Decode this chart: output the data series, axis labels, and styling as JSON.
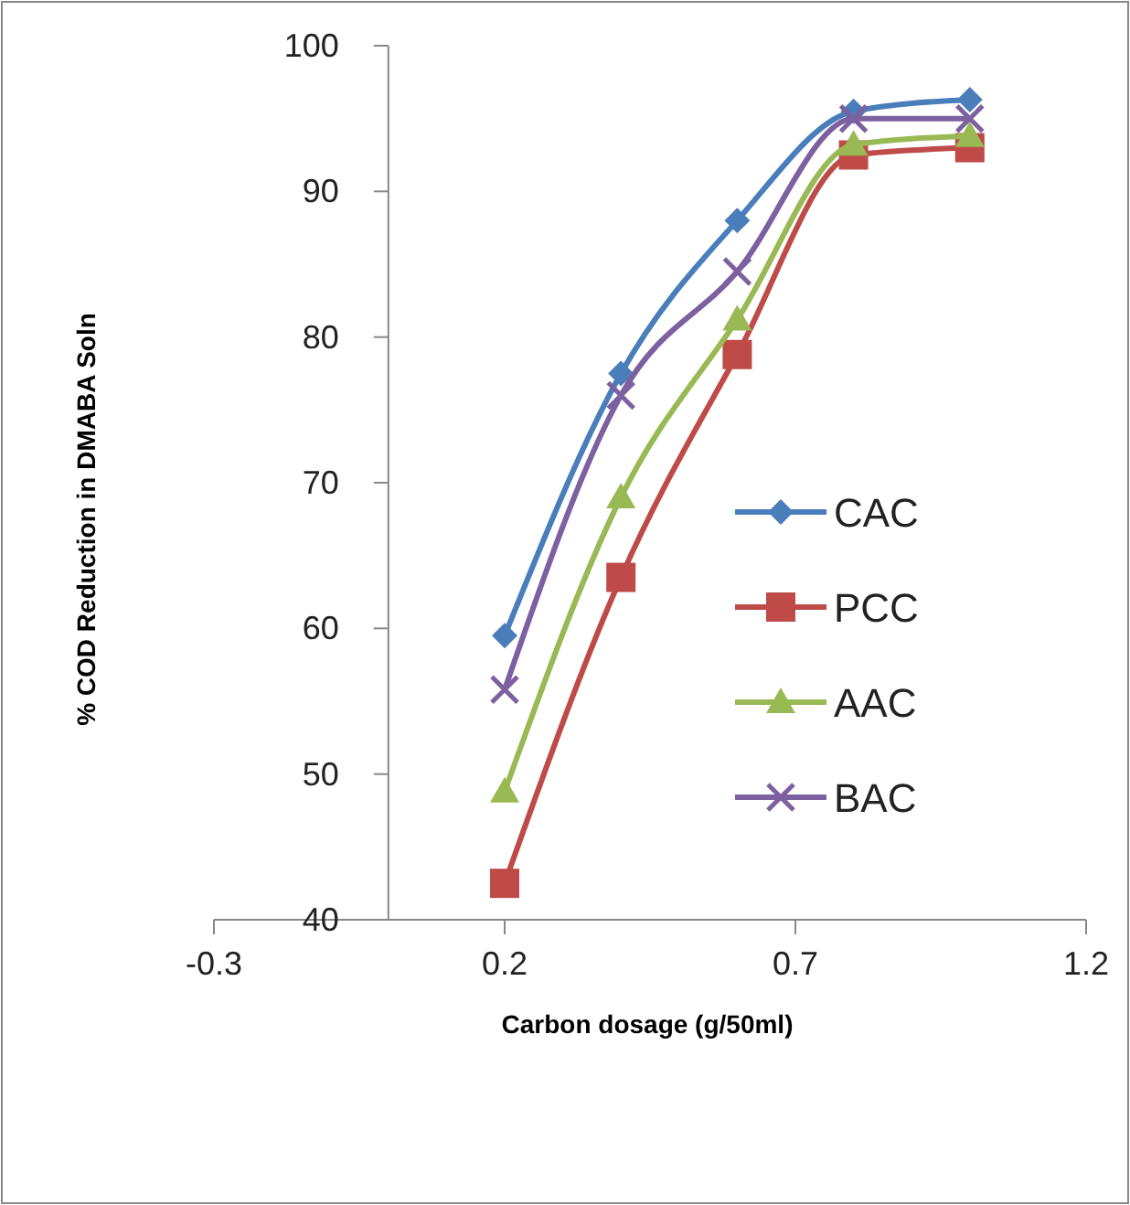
{
  "chart_data": {
    "type": "line",
    "xlabel": "Carbon dosage (g/50ml)",
    "ylabel": "% COD Reduction in DMABA Soln",
    "x": [
      0.2,
      0.4,
      0.6,
      0.8,
      1.0
    ],
    "xlim": [
      -0.3,
      1.2
    ],
    "xticks": [
      -0.3,
      0.2,
      0.7,
      1.2
    ],
    "ylim": [
      40,
      100
    ],
    "yticks": [
      40,
      50,
      60,
      70,
      80,
      90,
      100
    ],
    "legend": "right",
    "grid": false,
    "line_style": "solid",
    "series": [
      {
        "name": "CAC",
        "color": "#4a7ebb",
        "marker": "diamond",
        "values": [
          59.5,
          77.5,
          88,
          95.5,
          96.3
        ]
      },
      {
        "name": "PCC",
        "color": "#be4b48",
        "marker": "square",
        "values": [
          42.5,
          63.5,
          78.8,
          92.5,
          93
        ]
      },
      {
        "name": "AAC",
        "color": "#98b954",
        "marker": "triangle",
        "values": [
          48.8,
          69,
          81.2,
          93.2,
          93.8
        ]
      },
      {
        "name": "BAC",
        "color": "#7d60a0",
        "marker": "cross",
        "values": [
          55.8,
          76,
          84.5,
          95,
          95
        ]
      }
    ]
  }
}
